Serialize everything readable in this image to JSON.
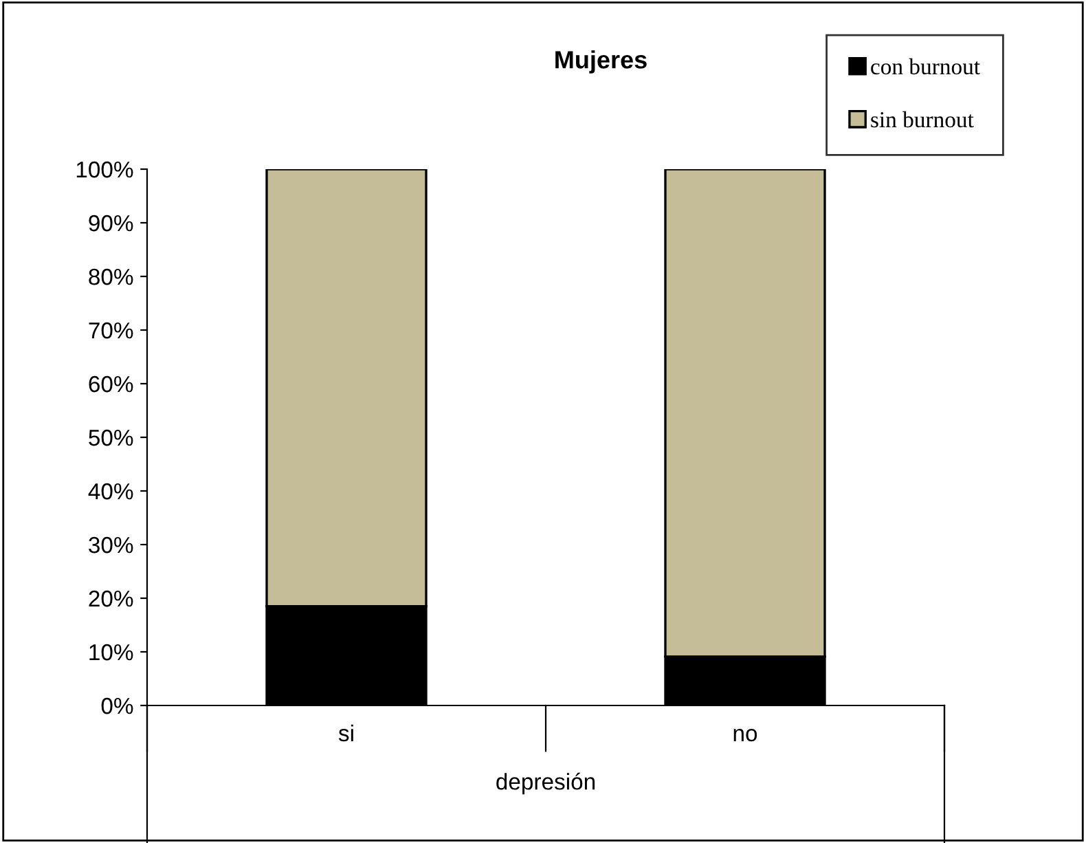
{
  "chart_data": {
    "type": "bar",
    "title": "Mujeres",
    "xlabel": "depresión",
    "categories": [
      "si",
      "no"
    ],
    "stacked": true,
    "series": [
      {
        "name": "con burnout",
        "color": "#000000",
        "values": [
          18.5,
          9.1
        ]
      },
      {
        "name": "sin burnout",
        "color": "#c4bd97",
        "values": [
          81.5,
          90.9
        ]
      }
    ],
    "ylim": [
      0,
      100
    ],
    "yticks": [
      {
        "value": 0,
        "label": "0%"
      },
      {
        "value": 10,
        "label": "10%"
      },
      {
        "value": 20,
        "label": "20%"
      },
      {
        "value": 30,
        "label": "30%"
      },
      {
        "value": 40,
        "label": "40%"
      },
      {
        "value": 50,
        "label": "50%"
      },
      {
        "value": 60,
        "label": "60%"
      },
      {
        "value": 70,
        "label": "70%"
      },
      {
        "value": 80,
        "label": "80%"
      },
      {
        "value": 90,
        "label": "90%"
      },
      {
        "value": 100,
        "label": "100%"
      }
    ],
    "grid": false,
    "legend": "top right"
  }
}
